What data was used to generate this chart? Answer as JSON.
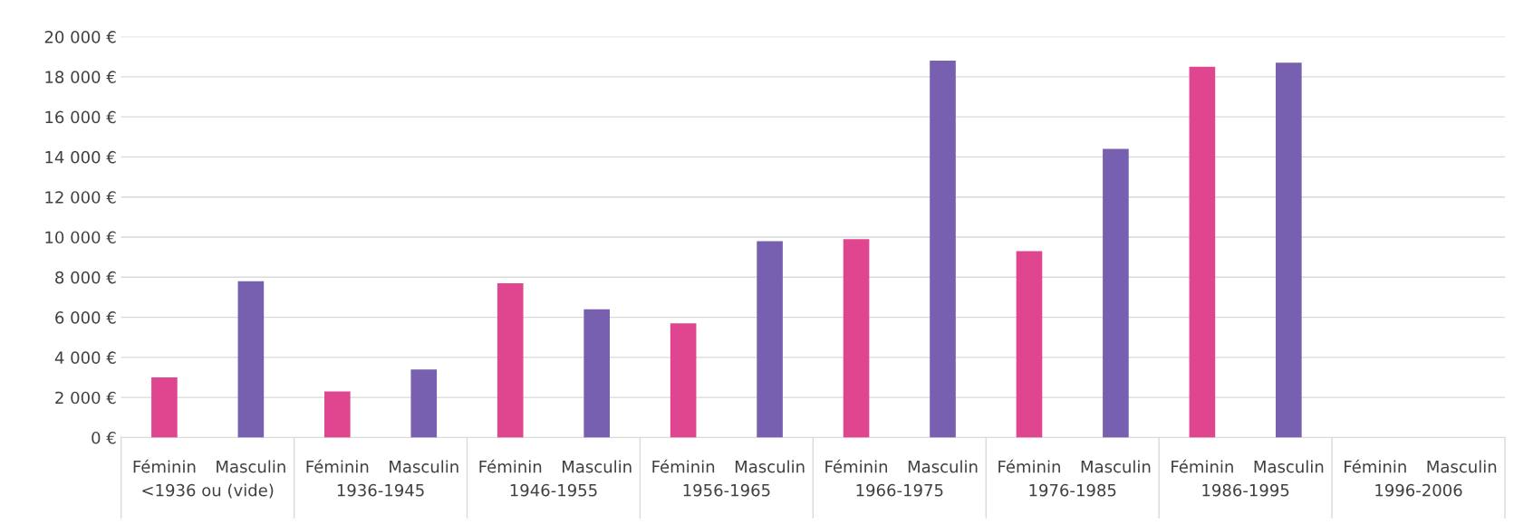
{
  "chart_data": {
    "type": "bar",
    "categories": [
      "Féminin",
      "Masculin",
      "Féminin",
      "Masculin",
      "Féminin",
      "Masculin",
      "Féminin",
      "Masculin",
      "Féminin",
      "Masculin",
      "Féminin",
      "Masculin",
      "Féminin",
      "Masculin",
      "Féminin",
      "Masculin"
    ],
    "values": [
      3000,
      7800,
      2300,
      3400,
      7700,
      6400,
      5700,
      9800,
      9900,
      18800,
      9300,
      14400,
      18500,
      18700,
      null,
      null
    ],
    "colors": [
      "#e0468f",
      "#7860b0",
      "#e0468f",
      "#7860b0",
      "#e0468f",
      "#7860b0",
      "#e0468f",
      "#7860b0",
      "#e0468f",
      "#7860b0",
      "#e0468f",
      "#7860b0",
      "#e0468f",
      "#7860b0",
      "#e0468f",
      "#7860b0"
    ],
    "annotations": [
      "<1936 ou (vide)",
      "1936-1945",
      "1946-1955",
      "1956-1965",
      "1966-1975",
      "1976-1985",
      "1986-1995",
      "1996-2006"
    ],
    "ylim": [
      0,
      20000
    ],
    "yticks": [
      {
        "value": 0,
        "label": "0 €"
      },
      {
        "value": 2000,
        "label": "2 000 €"
      },
      {
        "value": 4000,
        "label": "4 000 €"
      },
      {
        "value": 6000,
        "label": "6 000 €"
      },
      {
        "value": 8000,
        "label": "8 000 €"
      },
      {
        "value": 10000,
        "label": "10 000 €"
      },
      {
        "value": 12000,
        "label": "12 000 €"
      },
      {
        "value": 14000,
        "label": "14 000 €"
      },
      {
        "value": 16000,
        "label": "16 000 €"
      },
      {
        "value": 18000,
        "label": "18 000 €"
      },
      {
        "value": 20000,
        "label": "20 000 €"
      }
    ],
    "grid": "y"
  }
}
